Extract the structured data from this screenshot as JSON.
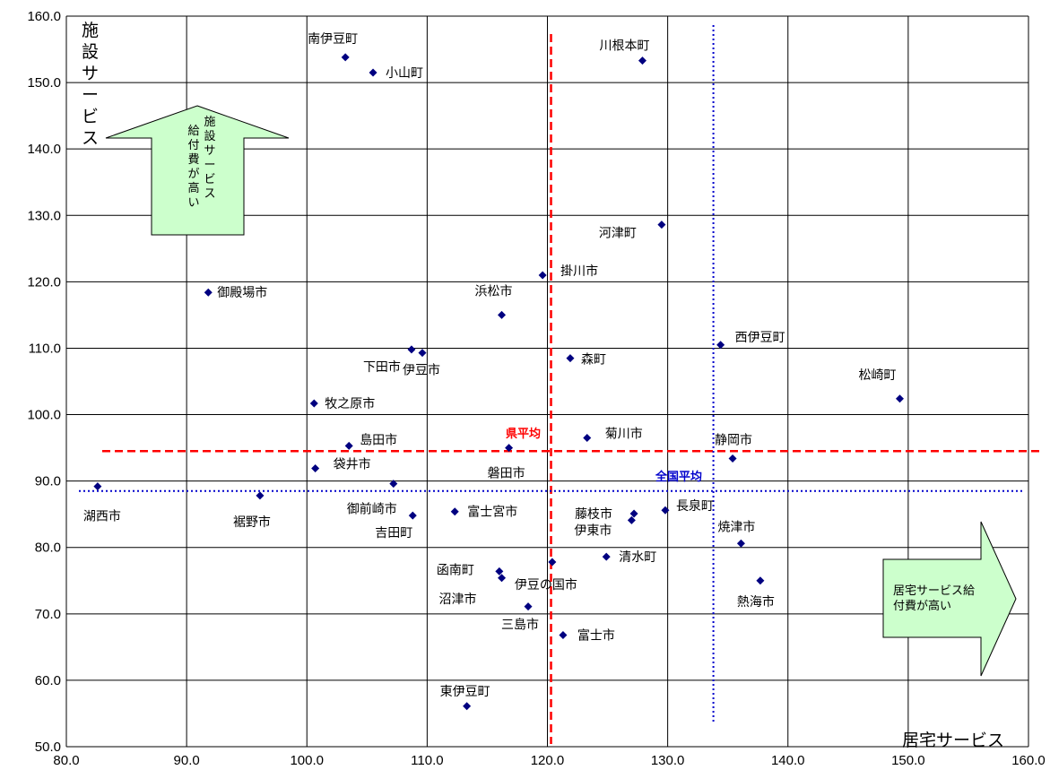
{
  "chart_data": {
    "type": "scatter",
    "title": "",
    "xlabel": "居宅サービス",
    "ylabel": "施設サービス",
    "xlim": [
      80,
      160
    ],
    "ylim": [
      50,
      160
    ],
    "x_ticks": [
      80,
      90,
      100,
      110,
      120,
      130,
      140,
      150,
      160
    ],
    "y_ticks": [
      50,
      60,
      70,
      80,
      90,
      100,
      110,
      120,
      130,
      140,
      150,
      160
    ],
    "x_tick_labels": [
      "80.0",
      "90.0",
      "100.0",
      "110.0",
      "120.0",
      "130.0",
      "140.0",
      "150.0",
      "160.0"
    ],
    "y_tick_labels": [
      "50.0",
      "60.0",
      "70.0",
      "80.0",
      "90.0",
      "100.0",
      "110.0",
      "120.0",
      "130.0",
      "140.0",
      "150.0",
      "160.0"
    ],
    "grid": true,
    "marker_color": "#000080",
    "points": [
      {
        "name": "南伊豆町",
        "x": 103.2,
        "y": 153.8
      },
      {
        "name": "小山町",
        "x": 105.5,
        "y": 151.5
      },
      {
        "name": "川根本町",
        "x": 127.9,
        "y": 153.3
      },
      {
        "name": "河津町",
        "x": 129.5,
        "y": 128.6
      },
      {
        "name": "掛川市",
        "x": 119.6,
        "y": 121.0
      },
      {
        "name": "御殿場市",
        "x": 91.8,
        "y": 118.4
      },
      {
        "name": "浜松市",
        "x": 116.2,
        "y": 115.0
      },
      {
        "name": "西伊豆町",
        "x": 134.4,
        "y": 110.5
      },
      {
        "name": "下田市",
        "x": 108.7,
        "y": 109.8
      },
      {
        "name": "伊豆市",
        "x": 109.6,
        "y": 109.3
      },
      {
        "name": "森町",
        "x": 121.9,
        "y": 108.5
      },
      {
        "name": "松崎町",
        "x": 149.3,
        "y": 102.4
      },
      {
        "name": "牧之原市",
        "x": 100.6,
        "y": 101.7
      },
      {
        "name": "菊川市",
        "x": 123.3,
        "y": 96.5
      },
      {
        "name": "島田市",
        "x": 103.5,
        "y": 95.3
      },
      {
        "name": "磐田市",
        "x": 116.8,
        "y": 95.0
      },
      {
        "name": "静岡市",
        "x": 135.4,
        "y": 93.4
      },
      {
        "name": "袋井市",
        "x": 100.7,
        "y": 91.9
      },
      {
        "name": "御前崎市",
        "x": 107.2,
        "y": 89.6
      },
      {
        "name": "湖西市",
        "x": 82.6,
        "y": 89.2
      },
      {
        "name": "裾野市",
        "x": 96.1,
        "y": 87.8
      },
      {
        "name": "富士宮市",
        "x": 112.3,
        "y": 85.4
      },
      {
        "name": "藤枝市",
        "x": 127.2,
        "y": 85.1
      },
      {
        "name": "長泉町",
        "x": 129.8,
        "y": 85.6
      },
      {
        "name": "吉田町",
        "x": 108.8,
        "y": 84.8
      },
      {
        "name": "伊東市",
        "x": 127.0,
        "y": 84.1
      },
      {
        "name": "焼津市",
        "x": 136.1,
        "y": 80.6
      },
      {
        "name": "清水町",
        "x": 124.9,
        "y": 78.6
      },
      {
        "name": "伊豆の国市",
        "x": 120.4,
        "y": 77.8
      },
      {
        "name": "函南町",
        "x": 116.0,
        "y": 76.4
      },
      {
        "name": "沼津市",
        "x": 116.2,
        "y": 75.4
      },
      {
        "name": "熱海市",
        "x": 137.7,
        "y": 75.0
      },
      {
        "name": "三島市",
        "x": 118.4,
        "y": 71.1
      },
      {
        "name": "富士市",
        "x": 121.3,
        "y": 66.8
      },
      {
        "name": "東伊豆町",
        "x": 113.3,
        "y": 56.1
      }
    ],
    "reference_lines": [
      {
        "name": "県平均",
        "color": "#ff0000",
        "style": "dashed",
        "x": 120.3,
        "y": 94.5
      },
      {
        "name": "全国平均",
        "color": "#0000cc",
        "style": "dotted",
        "x": 133.8,
        "y": 88.5
      }
    ],
    "annotations": [
      {
        "id": "up",
        "text": "施設サービス給付費が高い",
        "color": "#ccffcc",
        "direction": "up"
      },
      {
        "id": "right",
        "text": "居宅サービス給付費が高い",
        "color": "#ccffcc",
        "direction": "right"
      }
    ]
  }
}
